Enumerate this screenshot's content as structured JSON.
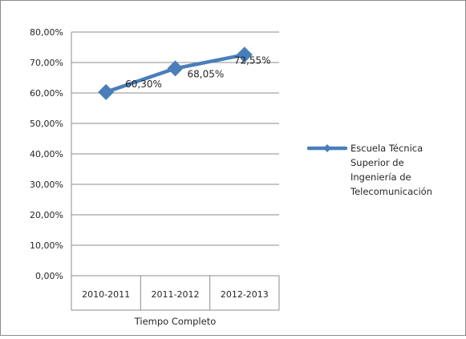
{
  "chart_data": {
    "type": "line",
    "categories": [
      "2010-2011",
      "2011-2012",
      "2012-2013"
    ],
    "category_group_label": "Tiempo Completo",
    "series": [
      {
        "name": "Escuela Técnica Superior de Ingeniería de Telecomunicación",
        "values": [
          60.3,
          68.05,
          72.55
        ],
        "data_labels": [
          "60,30%",
          "68,05%",
          "72,55%"
        ],
        "color": "#4a7ebb",
        "marker": "diamond"
      }
    ],
    "y_ticks": [
      "0,00%",
      "10,00%",
      "20,00%",
      "30,00%",
      "40,00%",
      "50,00%",
      "60,00%",
      "70,00%",
      "80,00%"
    ],
    "ylim": [
      0,
      80
    ],
    "y_step": 10,
    "grid": true,
    "legend_position": "right",
    "legend_lines": [
      "Escuela Técnica",
      "Superior de",
      "Ingeniería de",
      "Telecomunicación"
    ],
    "gridline_color": "#8c8c8c",
    "frame_color": "#8c8c8c"
  }
}
